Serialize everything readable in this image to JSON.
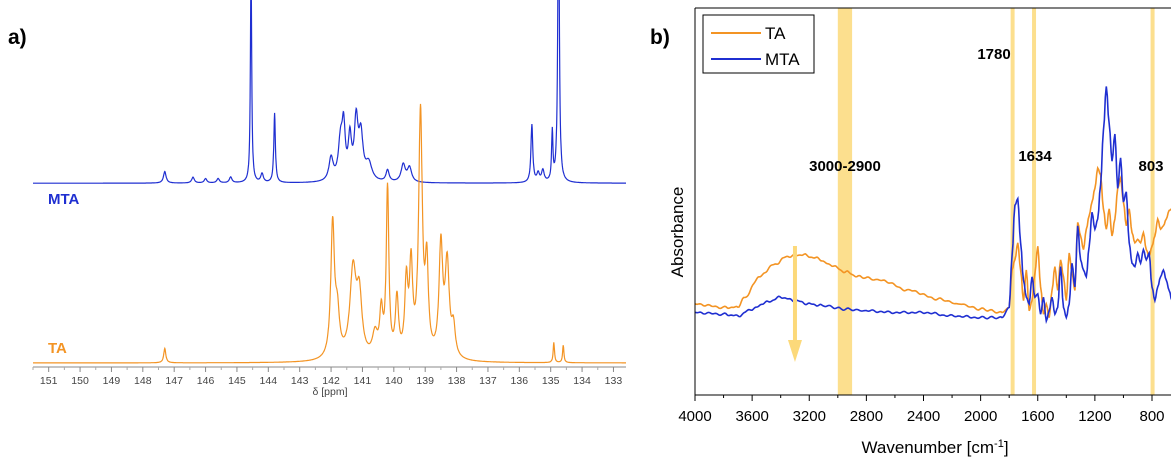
{
  "chart_data": [
    {
      "type": "line",
      "panel_label": "a)",
      "xlabel": "δ [ppm]",
      "ylabel": "",
      "x_reversed": true,
      "xlim": [
        151.5,
        132.6
      ],
      "x_ticks": [
        151,
        150,
        149,
        148,
        147,
        146,
        145,
        144,
        143,
        142,
        141,
        140,
        139,
        138,
        137,
        136,
        135,
        134,
        133
      ],
      "grid": false,
      "legend": "none",
      "series": [
        {
          "name": "MTA",
          "color": "#1f2fd1",
          "baseline": 0.62,
          "peaks": [
            [
              147.3,
              0.04,
              0.05
            ],
            [
              146.4,
              0.02,
              0.05
            ],
            [
              146.0,
              0.015,
              0.05
            ],
            [
              145.6,
              0.015,
              0.05
            ],
            [
              145.2,
              0.02,
              0.05
            ],
            [
              144.55,
              0.72,
              0.025
            ],
            [
              144.2,
              0.03,
              0.05
            ],
            [
              143.8,
              0.24,
              0.03
            ],
            [
              142.0,
              0.08,
              0.08
            ],
            [
              141.7,
              0.13,
              0.08
            ],
            [
              141.6,
              0.17,
              0.06
            ],
            [
              141.4,
              0.14,
              0.06
            ],
            [
              141.2,
              0.2,
              0.07
            ],
            [
              141.05,
              0.15,
              0.08
            ],
            [
              140.8,
              0.06,
              0.12
            ],
            [
              140.2,
              0.04,
              0.06
            ],
            [
              139.7,
              0.06,
              0.08
            ],
            [
              139.5,
              0.05,
              0.08
            ],
            [
              135.6,
              0.2,
              0.035
            ],
            [
              135.4,
              0.03,
              0.05
            ],
            [
              135.25,
              0.04,
              0.05
            ],
            [
              134.95,
              0.17,
              0.025
            ],
            [
              134.75,
              1.0,
              0.03
            ]
          ]
        },
        {
          "name": "TA",
          "color": "#f39424",
          "baseline": 0.0,
          "peaks": [
            [
              147.3,
              0.05,
              0.04
            ],
            [
              141.95,
              0.46,
              0.07
            ],
            [
              141.8,
              0.14,
              0.08
            ],
            [
              141.3,
              0.3,
              0.12
            ],
            [
              141.1,
              0.2,
              0.1
            ],
            [
              140.6,
              0.08,
              0.1
            ],
            [
              140.4,
              0.15,
              0.06
            ],
            [
              140.2,
              0.58,
              0.05
            ],
            [
              139.9,
              0.2,
              0.06
            ],
            [
              139.6,
              0.25,
              0.06
            ],
            [
              139.45,
              0.3,
              0.06
            ],
            [
              139.15,
              0.84,
              0.07
            ],
            [
              138.95,
              0.3,
              0.06
            ],
            [
              138.5,
              0.38,
              0.07
            ],
            [
              138.3,
              0.32,
              0.08
            ],
            [
              138.1,
              0.1,
              0.07
            ],
            [
              134.9,
              0.07,
              0.025
            ],
            [
              134.6,
              0.06,
              0.025
            ]
          ]
        }
      ],
      "series_labels": [
        "MTA",
        "TA"
      ]
    },
    {
      "type": "line",
      "panel_label": "b)",
      "xlabel": "Wavenumber [cm-1]",
      "xlabel_main": "Wavenumber [cm",
      "xlabel_sup": "-1",
      "xlabel_end": "]",
      "ylabel": "Absorbance",
      "x_reversed": true,
      "xlim": [
        4000,
        640
      ],
      "x_ticks": [
        4000,
        3600,
        3200,
        2800,
        2400,
        2000,
        1600,
        1200,
        800
      ],
      "y_ticks": [],
      "grid": false,
      "legend": "top-left",
      "highlight_bands": [
        [
          3000,
          2900
        ],
        [
          1790,
          1772
        ],
        [
          1640,
          1626
        ],
        [
          810,
          798
        ]
      ],
      "band_color": "#fcd97a",
      "annotations": [
        "3000-2900",
        "1780",
        "1634",
        "803"
      ],
      "arrow": {
        "x": 3300,
        "direction": "down",
        "color": "#fcd97a"
      },
      "series": [
        {
          "name": "TA",
          "color": "#f39424",
          "points": [
            [
              4000,
              0.3
            ],
            [
              3800,
              0.28
            ],
            [
              3700,
              0.28
            ],
            [
              3650,
              0.34
            ],
            [
              3550,
              0.46
            ],
            [
              3450,
              0.53
            ],
            [
              3350,
              0.58
            ],
            [
              3250,
              0.59
            ],
            [
              3150,
              0.57
            ],
            [
              3050,
              0.53
            ],
            [
              2950,
              0.49
            ],
            [
              2850,
              0.46
            ],
            [
              2700,
              0.44
            ],
            [
              2500,
              0.38
            ],
            [
              2300,
              0.33
            ],
            [
              2150,
              0.3
            ],
            [
              2000,
              0.27
            ],
            [
              1850,
              0.25
            ],
            [
              1800,
              0.28
            ],
            [
              1780,
              0.5
            ],
            [
              1760,
              0.56
            ],
            [
              1740,
              0.66
            ],
            [
              1720,
              0.5
            ],
            [
              1700,
              0.32
            ],
            [
              1680,
              0.5
            ],
            [
              1660,
              0.26
            ],
            [
              1640,
              0.32
            ],
            [
              1620,
              0.48
            ],
            [
              1600,
              0.64
            ],
            [
              1580,
              0.4
            ],
            [
              1560,
              0.24
            ],
            [
              1540,
              0.3
            ],
            [
              1520,
              0.22
            ],
            [
              1500,
              0.38
            ],
            [
              1480,
              0.52
            ],
            [
              1460,
              0.38
            ],
            [
              1440,
              0.56
            ],
            [
              1420,
              0.46
            ],
            [
              1400,
              0.32
            ],
            [
              1380,
              0.6
            ],
            [
              1360,
              0.48
            ],
            [
              1340,
              0.38
            ],
            [
              1320,
              0.78
            ],
            [
              1300,
              0.7
            ],
            [
              1280,
              0.62
            ],
            [
              1260,
              0.74
            ],
            [
              1240,
              0.82
            ],
            [
              1220,
              0.9
            ],
            [
              1200,
              0.98
            ],
            [
              1180,
              1.1
            ],
            [
              1160,
              1.06
            ],
            [
              1140,
              0.86
            ],
            [
              1120,
              0.74
            ],
            [
              1100,
              0.86
            ],
            [
              1080,
              0.7
            ],
            [
              1060,
              0.8
            ],
            [
              1040,
              0.98
            ],
            [
              1020,
              1.04
            ],
            [
              1000,
              0.9
            ],
            [
              980,
              0.76
            ],
            [
              960,
              0.86
            ],
            [
              940,
              0.72
            ],
            [
              920,
              0.66
            ],
            [
              900,
              0.68
            ],
            [
              880,
              0.66
            ],
            [
              860,
              0.72
            ],
            [
              840,
              0.62
            ],
            [
              820,
              0.58
            ],
            [
              800,
              0.64
            ],
            [
              780,
              0.7
            ],
            [
              760,
              0.8
            ],
            [
              740,
              0.74
            ],
            [
              720,
              0.76
            ],
            [
              700,
              0.8
            ],
            [
              680,
              0.85
            ],
            [
              660,
              0.86
            ]
          ]
        },
        {
          "name": "MTA",
          "color": "#1f2fd1",
          "points": [
            [
              4000,
              0.25
            ],
            [
              3800,
              0.24
            ],
            [
              3700,
              0.23
            ],
            [
              3600,
              0.27
            ],
            [
              3500,
              0.31
            ],
            [
              3400,
              0.34
            ],
            [
              3300,
              0.32
            ],
            [
              3200,
              0.3
            ],
            [
              3100,
              0.29
            ],
            [
              2950,
              0.27
            ],
            [
              2800,
              0.26
            ],
            [
              2600,
              0.25
            ],
            [
              2400,
              0.25
            ],
            [
              2200,
              0.23
            ],
            [
              2000,
              0.22
            ],
            [
              1850,
              0.22
            ],
            [
              1800,
              0.28
            ],
            [
              1780,
              0.58
            ],
            [
              1760,
              0.88
            ],
            [
              1740,
              0.92
            ],
            [
              1720,
              0.66
            ],
            [
              1700,
              0.44
            ],
            [
              1680,
              0.34
            ],
            [
              1660,
              0.3
            ],
            [
              1640,
              0.46
            ],
            [
              1620,
              0.34
            ],
            [
              1600,
              0.36
            ],
            [
              1580,
              0.24
            ],
            [
              1560,
              0.34
            ],
            [
              1540,
              0.2
            ],
            [
              1520,
              0.26
            ],
            [
              1500,
              0.34
            ],
            [
              1480,
              0.24
            ],
            [
              1460,
              0.28
            ],
            [
              1440,
              0.52
            ],
            [
              1420,
              0.28
            ],
            [
              1400,
              0.22
            ],
            [
              1380,
              0.3
            ],
            [
              1360,
              0.54
            ],
            [
              1340,
              0.4
            ],
            [
              1320,
              0.76
            ],
            [
              1300,
              0.56
            ],
            [
              1280,
              0.5
            ],
            [
              1260,
              0.46
            ],
            [
              1240,
              0.64
            ],
            [
              1220,
              0.84
            ],
            [
              1200,
              0.74
            ],
            [
              1180,
              0.8
            ],
            [
              1160,
              1.0
            ],
            [
              1140,
              1.32
            ],
            [
              1120,
              1.58
            ],
            [
              1100,
              1.36
            ],
            [
              1080,
              1.14
            ],
            [
              1060,
              1.3
            ],
            [
              1040,
              0.98
            ],
            [
              1020,
              1.16
            ],
            [
              1000,
              0.9
            ],
            [
              980,
              0.96
            ],
            [
              960,
              0.66
            ],
            [
              940,
              0.54
            ],
            [
              920,
              0.52
            ],
            [
              900,
              0.6
            ],
            [
              880,
              0.54
            ],
            [
              860,
              0.62
            ],
            [
              840,
              0.56
            ],
            [
              820,
              0.6
            ],
            [
              800,
              0.4
            ],
            [
              780,
              0.32
            ],
            [
              760,
              0.4
            ],
            [
              740,
              0.46
            ],
            [
              720,
              0.5
            ],
            [
              700,
              0.44
            ],
            [
              680,
              0.38
            ],
            [
              660,
              0.32
            ]
          ]
        }
      ]
    }
  ]
}
